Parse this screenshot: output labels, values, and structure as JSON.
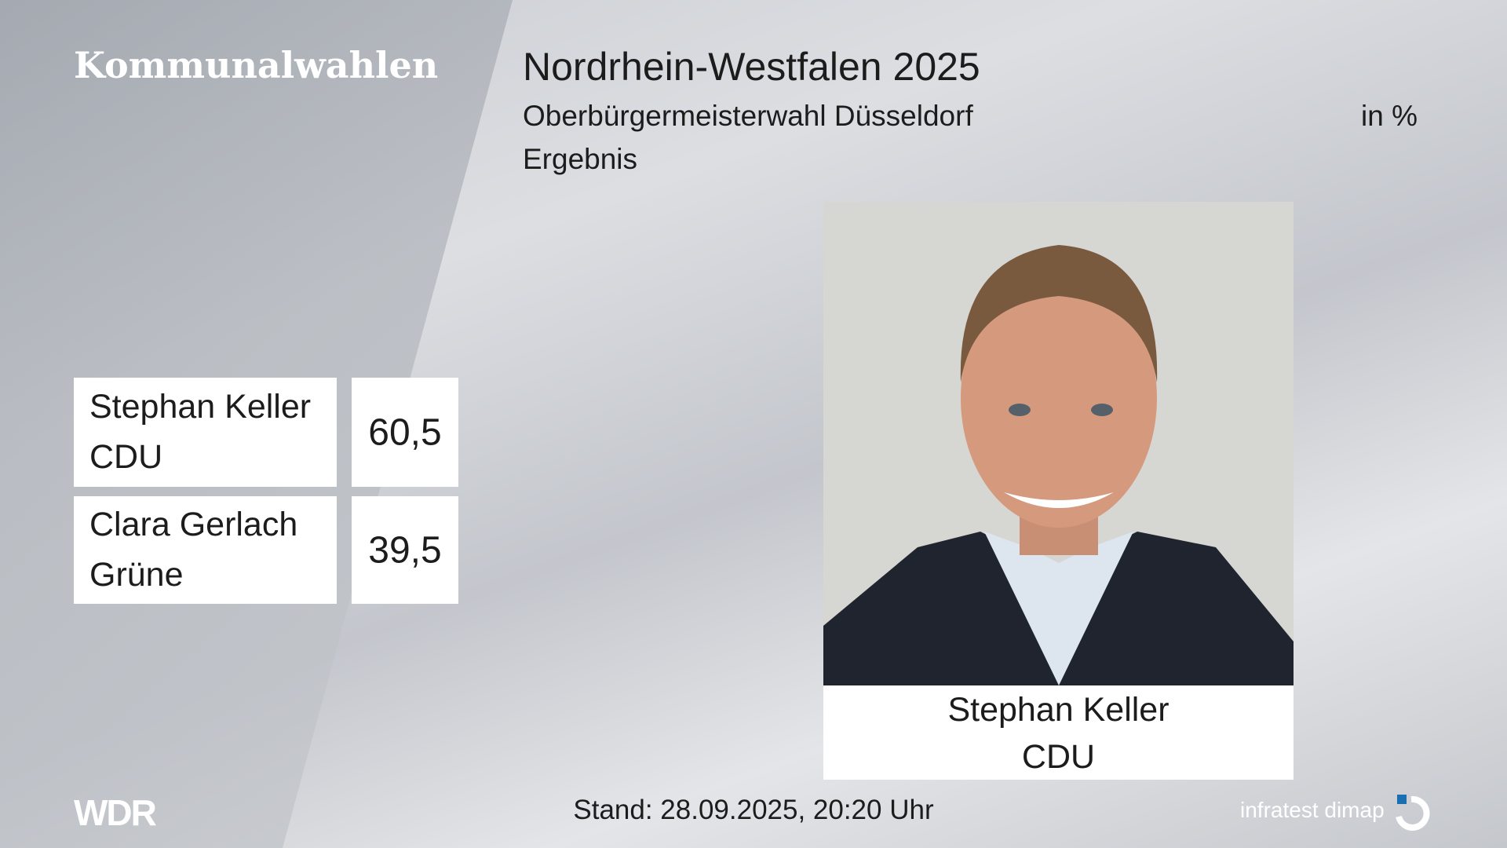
{
  "header": {
    "brand": "Kommunalwahlen",
    "title": "Nordrhein-Westfalen 2025",
    "subtitle": "Oberbürgermeisterwahl Düsseldorf",
    "unit": "in %",
    "label": "Ergebnis"
  },
  "results": [
    {
      "name": "Stephan Keller",
      "party": "CDU",
      "value": "60,5"
    },
    {
      "name": "Clara Gerlach",
      "party": "Grüne",
      "value": "39,5"
    }
  ],
  "portrait": {
    "name": "Stephan Keller",
    "party": "CDU"
  },
  "footer": {
    "logo": "WDR",
    "stand": "Stand: 28.09.2025, 20:20 Uhr",
    "source": "infratest dimap"
  }
}
